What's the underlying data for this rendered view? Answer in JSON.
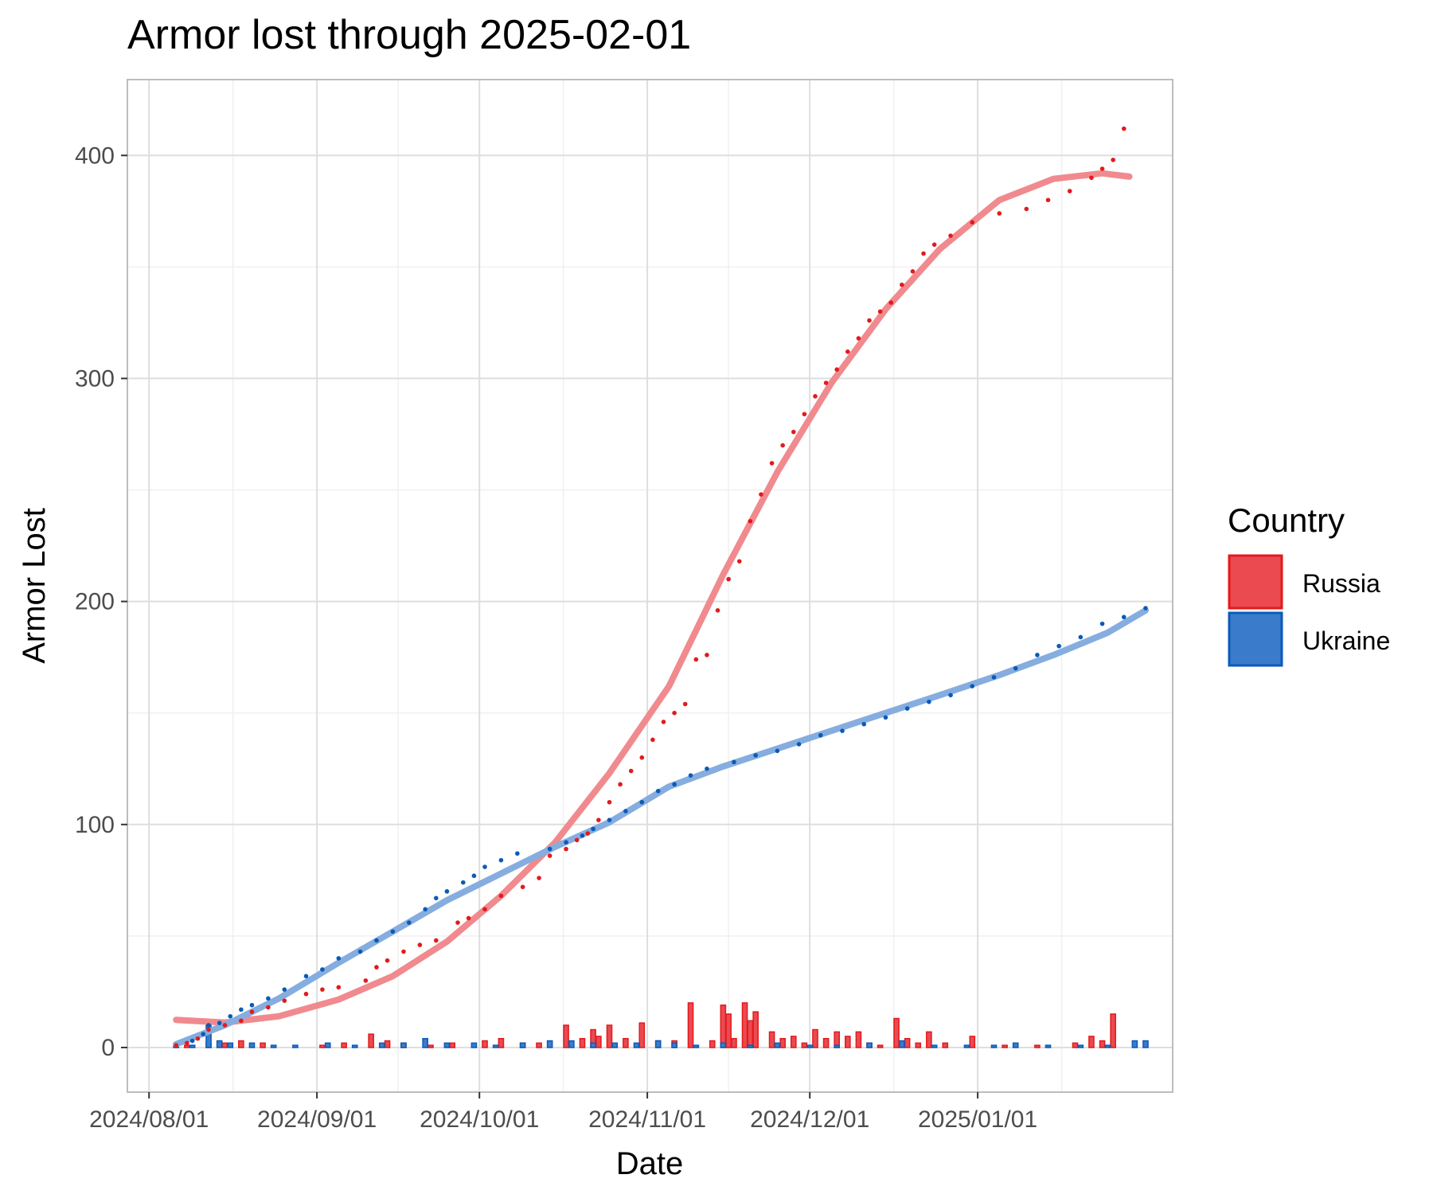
{
  "chart_data": {
    "type": "line",
    "title": "Armor lost through 2025-02-01",
    "xlabel": "Date",
    "ylabel": "Armor Lost",
    "grid": true,
    "legend_position": "right",
    "xlim": [
      "2024-07-28",
      "2025-02-06"
    ],
    "ylim": [
      -20,
      434
    ],
    "x_ticks": [
      "2024/08/01",
      "2024/09/01",
      "2024/10/01",
      "2024/11/01",
      "2024/12/01",
      "2025/01/01"
    ],
    "x_tick_dates": [
      "2024-08-01",
      "2024-09-01",
      "2024-10-01",
      "2024-11-01",
      "2024-12-01",
      "2025-01-01"
    ],
    "y_ticks": [
      0,
      100,
      200,
      300,
      400
    ],
    "legend": {
      "title": "Country",
      "entries": [
        "Russia",
        "Ukraine"
      ]
    },
    "colors": {
      "Russia": "#e31a1c",
      "Ukraine": "#0a5bb8",
      "Russia_fill": "#ea4a50",
      "Ukraine_fill": "#3a7bcb",
      "Russia_smooth": "#f08a8e",
      "Ukraine_smooth": "#86addf"
    },
    "series": [
      {
        "name": "Russia",
        "cumulative": [
          [
            "2024-08-06",
            1
          ],
          [
            "2024-08-08",
            2
          ],
          [
            "2024-08-10",
            4
          ],
          [
            "2024-08-12",
            8
          ],
          [
            "2024-08-15",
            10
          ],
          [
            "2024-08-18",
            12
          ],
          [
            "2024-08-20",
            16
          ],
          [
            "2024-08-23",
            18
          ],
          [
            "2024-08-26",
            21
          ],
          [
            "2024-08-30",
            24
          ],
          [
            "2024-09-02",
            26
          ],
          [
            "2024-09-05",
            27
          ],
          [
            "2024-09-10",
            30
          ],
          [
            "2024-09-12",
            36
          ],
          [
            "2024-09-14",
            39
          ],
          [
            "2024-09-17",
            43
          ],
          [
            "2024-09-20",
            46
          ],
          [
            "2024-09-23",
            48
          ],
          [
            "2024-09-27",
            56
          ],
          [
            "2024-09-29",
            58
          ],
          [
            "2024-10-02",
            62
          ],
          [
            "2024-10-05",
            68
          ],
          [
            "2024-10-09",
            72
          ],
          [
            "2024-10-12",
            76
          ],
          [
            "2024-10-14",
            86
          ],
          [
            "2024-10-17",
            89
          ],
          [
            "2024-10-19",
            93
          ],
          [
            "2024-10-21",
            96
          ],
          [
            "2024-10-23",
            102
          ],
          [
            "2024-10-25",
            110
          ],
          [
            "2024-10-27",
            118
          ],
          [
            "2024-10-29",
            124
          ],
          [
            "2024-10-31",
            130
          ],
          [
            "2024-11-02",
            138
          ],
          [
            "2024-11-04",
            146
          ],
          [
            "2024-11-06",
            150
          ],
          [
            "2024-11-08",
            154
          ],
          [
            "2024-11-10",
            174
          ],
          [
            "2024-11-12",
            176
          ],
          [
            "2024-11-14",
            196
          ],
          [
            "2024-11-16",
            210
          ],
          [
            "2024-11-18",
            218
          ],
          [
            "2024-11-20",
            236
          ],
          [
            "2024-11-22",
            248
          ],
          [
            "2024-11-24",
            262
          ],
          [
            "2024-11-26",
            270
          ],
          [
            "2024-11-28",
            276
          ],
          [
            "2024-11-30",
            284
          ],
          [
            "2024-12-02",
            292
          ],
          [
            "2024-12-04",
            298
          ],
          [
            "2024-12-06",
            304
          ],
          [
            "2024-12-08",
            312
          ],
          [
            "2024-12-10",
            318
          ],
          [
            "2024-12-12",
            326
          ],
          [
            "2024-12-14",
            330
          ],
          [
            "2024-12-16",
            334
          ],
          [
            "2024-12-18",
            342
          ],
          [
            "2024-12-20",
            348
          ],
          [
            "2024-12-22",
            356
          ],
          [
            "2024-12-24",
            360
          ],
          [
            "2024-12-27",
            364
          ],
          [
            "2024-12-31",
            370
          ],
          [
            "2025-01-05",
            374
          ],
          [
            "2025-01-10",
            376
          ],
          [
            "2025-01-14",
            380
          ],
          [
            "2025-01-18",
            384
          ],
          [
            "2025-01-22",
            390
          ],
          [
            "2025-01-24",
            394
          ],
          [
            "2025-01-26",
            398
          ],
          [
            "2025-01-28",
            412
          ]
        ],
        "daily": [
          [
            "2024-08-06",
            2
          ],
          [
            "2024-08-08",
            1
          ],
          [
            "2024-08-12",
            2
          ],
          [
            "2024-08-15",
            2
          ],
          [
            "2024-08-18",
            3
          ],
          [
            "2024-08-22",
            2
          ],
          [
            "2024-09-02",
            1
          ],
          [
            "2024-09-06",
            2
          ],
          [
            "2024-09-11",
            6
          ],
          [
            "2024-09-14",
            3
          ],
          [
            "2024-09-17",
            2
          ],
          [
            "2024-09-22",
            1
          ],
          [
            "2024-09-26",
            2
          ],
          [
            "2024-10-02",
            3
          ],
          [
            "2024-10-05",
            4
          ],
          [
            "2024-10-09",
            2
          ],
          [
            "2024-10-12",
            2
          ],
          [
            "2024-10-17",
            10
          ],
          [
            "2024-10-20",
            4
          ],
          [
            "2024-10-22",
            8
          ],
          [
            "2024-10-23",
            5
          ],
          [
            "2024-10-25",
            10
          ],
          [
            "2024-10-28",
            4
          ],
          [
            "2024-10-31",
            11
          ],
          [
            "2024-11-03",
            3
          ],
          [
            "2024-11-06",
            3
          ],
          [
            "2024-11-09",
            20
          ],
          [
            "2024-11-13",
            3
          ],
          [
            "2024-11-15",
            19
          ],
          [
            "2024-11-16",
            15
          ],
          [
            "2024-11-17",
            4
          ],
          [
            "2024-11-19",
            20
          ],
          [
            "2024-11-20",
            12
          ],
          [
            "2024-11-21",
            16
          ],
          [
            "2024-11-24",
            7
          ],
          [
            "2024-11-26",
            4
          ],
          [
            "2024-11-28",
            5
          ],
          [
            "2024-11-30",
            2
          ],
          [
            "2024-12-02",
            8
          ],
          [
            "2024-12-04",
            4
          ],
          [
            "2024-12-06",
            7
          ],
          [
            "2024-12-08",
            5
          ],
          [
            "2024-12-10",
            7
          ],
          [
            "2024-12-12",
            2
          ],
          [
            "2024-12-14",
            1
          ],
          [
            "2024-12-17",
            13
          ],
          [
            "2024-12-19",
            4
          ],
          [
            "2024-12-21",
            2
          ],
          [
            "2024-12-23",
            7
          ],
          [
            "2024-12-26",
            2
          ],
          [
            "2024-12-31",
            5
          ],
          [
            "2025-01-06",
            1
          ],
          [
            "2025-01-12",
            1
          ],
          [
            "2025-01-19",
            2
          ],
          [
            "2025-01-22",
            5
          ],
          [
            "2025-01-24",
            3
          ],
          [
            "2025-01-26",
            15
          ]
        ],
        "smooth": [
          [
            "2024-08-06",
            12.4
          ],
          [
            "2024-08-15",
            11.2
          ],
          [
            "2024-08-25",
            14.0
          ],
          [
            "2024-09-05",
            21.5
          ],
          [
            "2024-09-15",
            32.0
          ],
          [
            "2024-09-25",
            47.5
          ],
          [
            "2024-10-05",
            68.0
          ],
          [
            "2024-10-15",
            92.0
          ],
          [
            "2024-10-25",
            123.0
          ],
          [
            "2024-11-05",
            162.0
          ],
          [
            "2024-11-15",
            212.0
          ],
          [
            "2024-11-25",
            258.0
          ],
          [
            "2024-12-05",
            298.0
          ],
          [
            "2024-12-15",
            331.0
          ],
          [
            "2024-12-25",
            358.0
          ],
          [
            "2025-01-05",
            380.0
          ],
          [
            "2025-01-15",
            389.5
          ],
          [
            "2025-01-24",
            392.0
          ],
          [
            "2025-01-29",
            390.5
          ]
        ]
      },
      {
        "name": "Ukraine",
        "cumulative": [
          [
            "2024-08-09",
            3
          ],
          [
            "2024-08-11",
            6
          ],
          [
            "2024-08-12",
            10
          ],
          [
            "2024-08-14",
            11
          ],
          [
            "2024-08-16",
            14
          ],
          [
            "2024-08-18",
            17
          ],
          [
            "2024-08-20",
            19
          ],
          [
            "2024-08-23",
            22
          ],
          [
            "2024-08-26",
            26
          ],
          [
            "2024-08-30",
            32
          ],
          [
            "2024-09-02",
            35
          ],
          [
            "2024-09-05",
            40
          ],
          [
            "2024-09-09",
            43
          ],
          [
            "2024-09-12",
            48
          ],
          [
            "2024-09-15",
            52
          ],
          [
            "2024-09-18",
            56
          ],
          [
            "2024-09-21",
            62
          ],
          [
            "2024-09-23",
            67
          ],
          [
            "2024-09-25",
            70
          ],
          [
            "2024-09-28",
            74
          ],
          [
            "2024-09-30",
            77
          ],
          [
            "2024-10-02",
            81
          ],
          [
            "2024-10-05",
            84
          ],
          [
            "2024-10-08",
            87
          ],
          [
            "2024-10-14",
            89
          ],
          [
            "2024-10-17",
            92
          ],
          [
            "2024-10-20",
            95
          ],
          [
            "2024-10-22",
            98
          ],
          [
            "2024-10-25",
            102
          ],
          [
            "2024-10-28",
            106
          ],
          [
            "2024-10-31",
            110
          ],
          [
            "2024-11-03",
            115
          ],
          [
            "2024-11-06",
            118
          ],
          [
            "2024-11-09",
            122
          ],
          [
            "2024-11-12",
            125
          ],
          [
            "2024-11-17",
            128
          ],
          [
            "2024-11-21",
            131
          ],
          [
            "2024-11-25",
            133
          ],
          [
            "2024-11-29",
            136
          ],
          [
            "2024-12-03",
            140
          ],
          [
            "2024-12-07",
            142
          ],
          [
            "2024-12-11",
            145
          ],
          [
            "2024-12-15",
            148
          ],
          [
            "2024-12-19",
            152
          ],
          [
            "2024-12-23",
            155
          ],
          [
            "2024-12-27",
            158
          ],
          [
            "2024-12-31",
            162
          ],
          [
            "2025-01-04",
            166
          ],
          [
            "2025-01-08",
            170
          ],
          [
            "2025-01-12",
            176
          ],
          [
            "2025-01-16",
            180
          ],
          [
            "2025-01-20",
            184
          ],
          [
            "2025-01-24",
            190
          ],
          [
            "2025-01-28",
            193
          ],
          [
            "2025-02-01",
            197
          ]
        ],
        "daily": [
          [
            "2024-08-06",
            1
          ],
          [
            "2024-08-09",
            1
          ],
          [
            "2024-08-12",
            10
          ],
          [
            "2024-08-14",
            3
          ],
          [
            "2024-08-16",
            2
          ],
          [
            "2024-08-20",
            2
          ],
          [
            "2024-08-24",
            1
          ],
          [
            "2024-08-28",
            1
          ],
          [
            "2024-09-03",
            2
          ],
          [
            "2024-09-08",
            1
          ],
          [
            "2024-09-13",
            2
          ],
          [
            "2024-09-17",
            2
          ],
          [
            "2024-09-21",
            4
          ],
          [
            "2024-09-25",
            2
          ],
          [
            "2024-09-30",
            2
          ],
          [
            "2024-10-04",
            1
          ],
          [
            "2024-10-09",
            2
          ],
          [
            "2024-10-14",
            3
          ],
          [
            "2024-10-18",
            3
          ],
          [
            "2024-10-22",
            2
          ],
          [
            "2024-10-26",
            2
          ],
          [
            "2024-10-30",
            2
          ],
          [
            "2024-11-03",
            3
          ],
          [
            "2024-11-06",
            2
          ],
          [
            "2024-11-10",
            1
          ],
          [
            "2024-11-15",
            2
          ],
          [
            "2024-11-20",
            1
          ],
          [
            "2024-11-25",
            2
          ],
          [
            "2024-12-01",
            1
          ],
          [
            "2024-12-06",
            1
          ],
          [
            "2024-12-12",
            2
          ],
          [
            "2024-12-18",
            3
          ],
          [
            "2024-12-24",
            1
          ],
          [
            "2024-12-30",
            1
          ],
          [
            "2025-01-04",
            1
          ],
          [
            "2025-01-08",
            2
          ],
          [
            "2025-01-14",
            1
          ],
          [
            "2025-01-20",
            1
          ],
          [
            "2025-01-25",
            1
          ],
          [
            "2025-01-30",
            3
          ],
          [
            "2025-02-01",
            3
          ]
        ],
        "smooth": [
          [
            "2024-08-06",
            1.5
          ],
          [
            "2024-08-15",
            10.0
          ],
          [
            "2024-08-25",
            22.0
          ],
          [
            "2024-09-05",
            38.0
          ],
          [
            "2024-09-15",
            52.0
          ],
          [
            "2024-09-25",
            66.0
          ],
          [
            "2024-10-05",
            78.0
          ],
          [
            "2024-10-15",
            90.0
          ],
          [
            "2024-10-25",
            101.0
          ],
          [
            "2024-11-05",
            117.0
          ],
          [
            "2024-11-15",
            126.0
          ],
          [
            "2024-11-25",
            134.0
          ],
          [
            "2024-12-05",
            142.0
          ],
          [
            "2024-12-15",
            150.0
          ],
          [
            "2024-12-25",
            158.0
          ],
          [
            "2025-01-05",
            167.0
          ],
          [
            "2025-01-15",
            176.0
          ],
          [
            "2025-01-25",
            186.0
          ],
          [
            "2025-02-01",
            196.0
          ]
        ]
      }
    ]
  }
}
